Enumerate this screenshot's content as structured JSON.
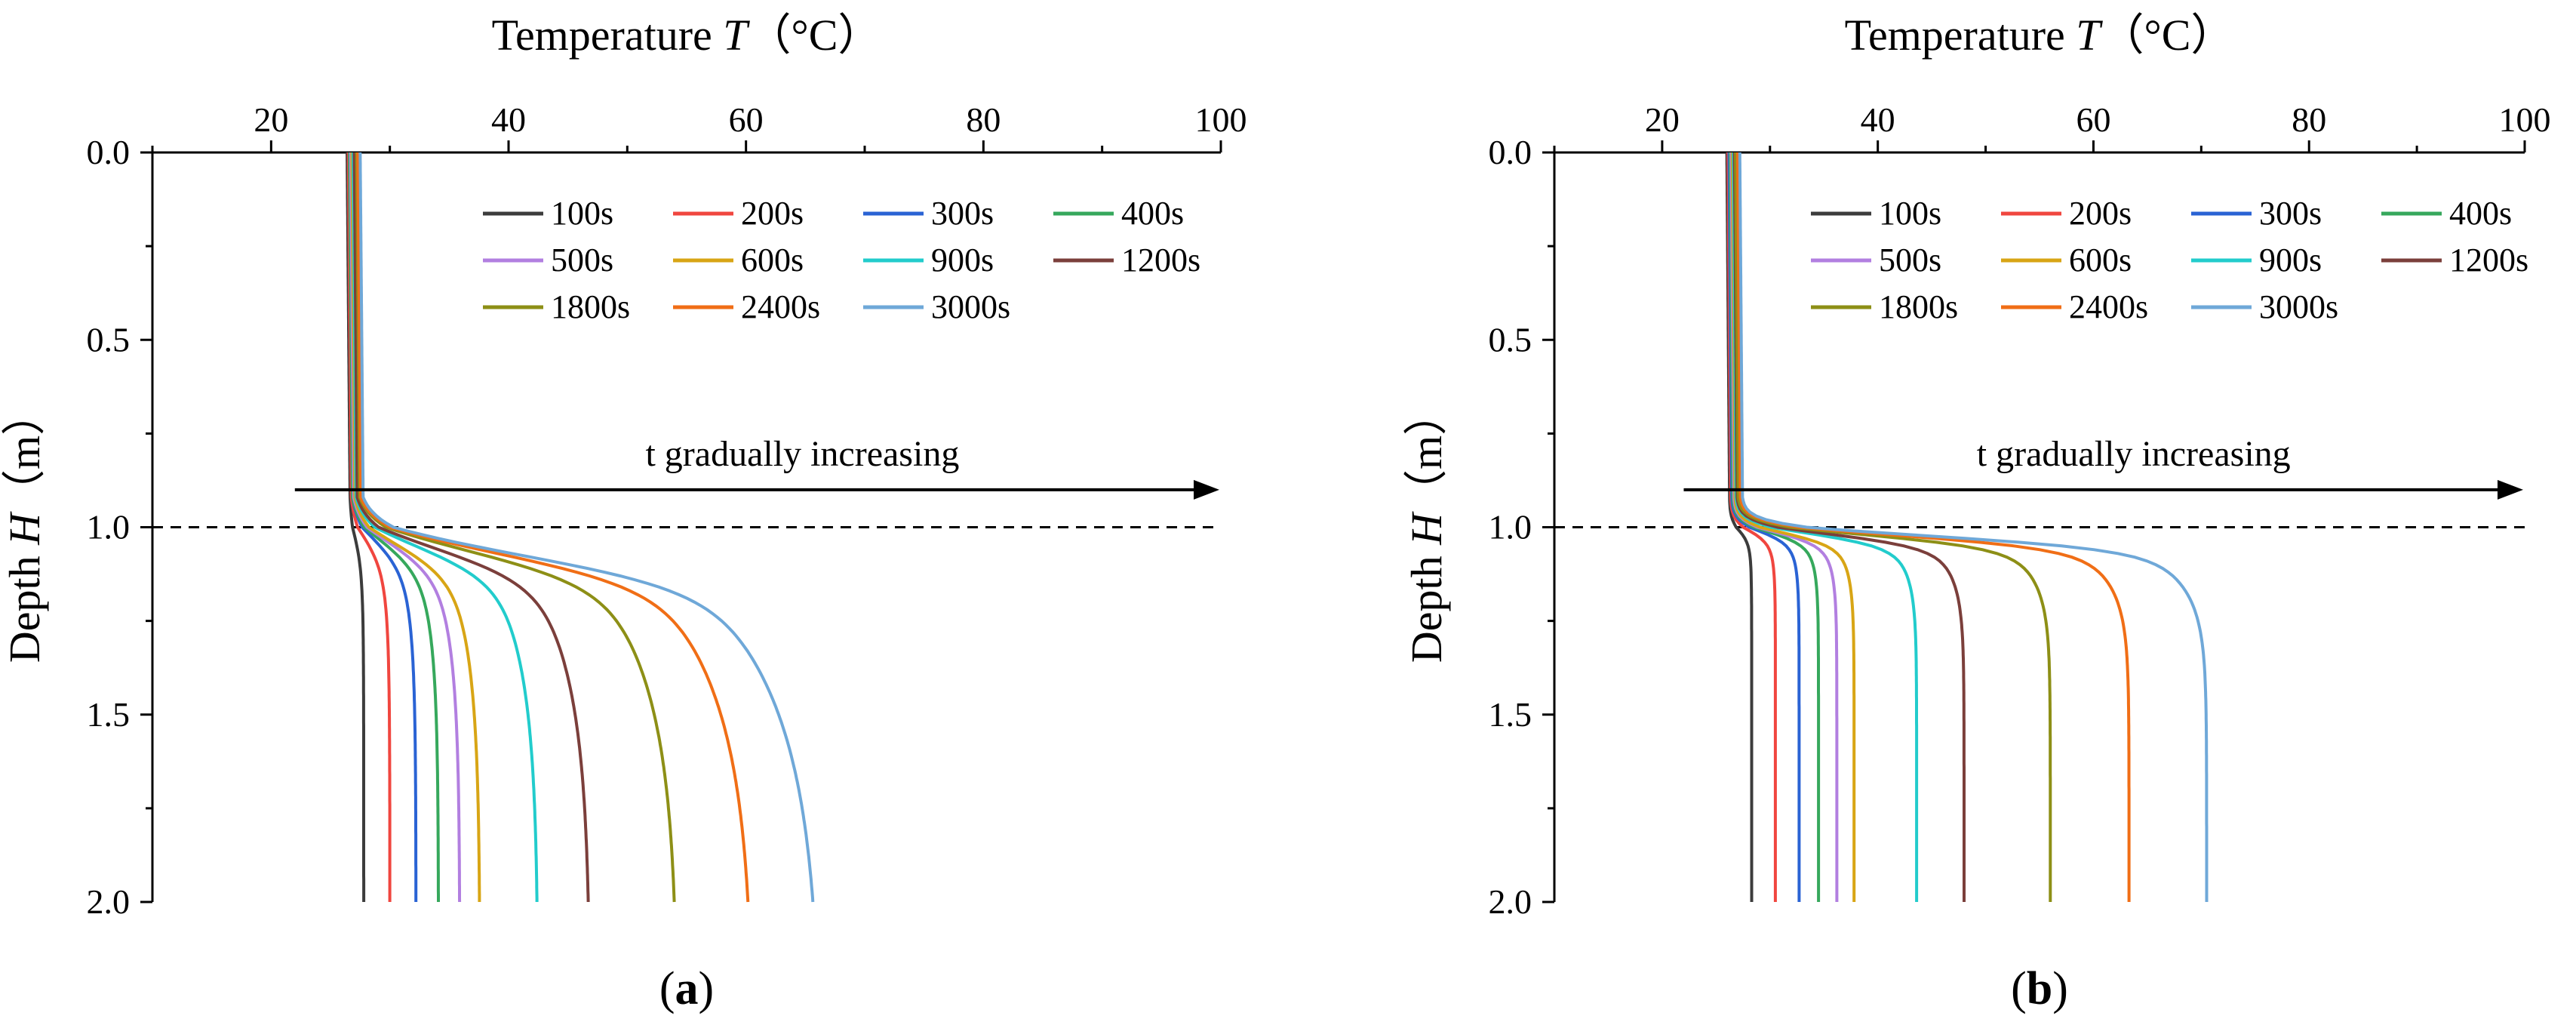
{
  "figure": {
    "panel_labels": [
      "(a)",
      "(b)"
    ],
    "colors": {
      "100s": "#3c3c3c",
      "200s": "#f0463f",
      "300s": "#2a63d4",
      "400s": "#36a85c",
      "500s": "#b27fe0",
      "600s": "#d8a515",
      "900s": "#22cccc",
      "1200s": "#7b3f3b",
      "1800s": "#8d8f16",
      "2400s": "#f06e16",
      "3000s": "#6fa8d8"
    }
  },
  "chart_data": [
    {
      "type": "line",
      "panel": "(a)",
      "title": "Temperature T (°C)",
      "xlabel": "Temperature T (°C)",
      "ylabel": "Depth H (m)",
      "xlim": [
        10,
        100
      ],
      "ylim": [
        2.0,
        0.0
      ],
      "x_axis_position": "top",
      "xticks": [
        "20",
        "40",
        "60",
        "80",
        "100"
      ],
      "yticks": [
        "0.0",
        "0.5",
        "1.0",
        "1.5",
        "2.0"
      ],
      "reference_line": {
        "depth": 1.0,
        "style": "dashed"
      },
      "annotation": {
        "text": "t gradually increasing",
        "arrow_from_T": 22,
        "arrow_to_T": 100,
        "depth": 0.9
      },
      "legend": {
        "placement": "top-right",
        "columns": 4
      },
      "series": [
        {
          "name": "100s",
          "surface_T": 26.4,
          "deep_T": 27.8
        },
        {
          "name": "200s",
          "surface_T": 26.5,
          "deep_T": 30.0
        },
        {
          "name": "300s",
          "surface_T": 26.6,
          "deep_T": 32.2
        },
        {
          "name": "400s",
          "surface_T": 26.6,
          "deep_T": 34.1
        },
        {
          "name": "500s",
          "surface_T": 26.7,
          "deep_T": 35.9
        },
        {
          "name": "600s",
          "surface_T": 26.8,
          "deep_T": 37.6
        },
        {
          "name": "900s",
          "surface_T": 26.9,
          "deep_T": 42.5
        },
        {
          "name": "1200s",
          "surface_T": 27.0,
          "deep_T": 46.9
        },
        {
          "name": "1800s",
          "surface_T": 27.2,
          "deep_T": 54.3
        },
        {
          "name": "2400s",
          "surface_T": 27.3,
          "deep_T": 60.7
        },
        {
          "name": "3000s",
          "surface_T": 27.5,
          "deep_T": 66.4
        }
      ]
    },
    {
      "type": "line",
      "panel": "(b)",
      "title": "Temperature T (°C)",
      "xlabel": "Temperature T (°C)",
      "ylabel": "Depth H (m)",
      "xlim": [
        10,
        100
      ],
      "ylim": [
        2.0,
        0.0
      ],
      "x_axis_position": "top",
      "xticks": [
        "20",
        "40",
        "60",
        "80",
        "100"
      ],
      "yticks": [
        "0.0",
        "0.5",
        "1.0",
        "1.5",
        "2.0"
      ],
      "reference_line": {
        "depth": 1.0,
        "style": "dashed"
      },
      "annotation": {
        "text": "t gradually increasing",
        "arrow_from_T": 22,
        "arrow_to_T": 100,
        "depth": 0.9
      },
      "legend": {
        "placement": "top-right",
        "columns": 4
      },
      "series": [
        {
          "name": "100s",
          "surface_T": 26.0,
          "deep_T": 28.3
        },
        {
          "name": "200s",
          "surface_T": 26.1,
          "deep_T": 30.5
        },
        {
          "name": "300s",
          "surface_T": 26.2,
          "deep_T": 32.7
        },
        {
          "name": "400s",
          "surface_T": 26.3,
          "deep_T": 34.5
        },
        {
          "name": "500s",
          "surface_T": 26.4,
          "deep_T": 36.2
        },
        {
          "name": "600s",
          "surface_T": 26.5,
          "deep_T": 37.8
        },
        {
          "name": "900s",
          "surface_T": 26.6,
          "deep_T": 43.6
        },
        {
          "name": "1200s",
          "surface_T": 26.7,
          "deep_T": 48.0
        },
        {
          "name": "1800s",
          "surface_T": 26.8,
          "deep_T": 56.0
        },
        {
          "name": "2400s",
          "surface_T": 27.0,
          "deep_T": 63.3
        },
        {
          "name": "3000s",
          "surface_T": 27.2,
          "deep_T": 70.5
        }
      ]
    }
  ]
}
